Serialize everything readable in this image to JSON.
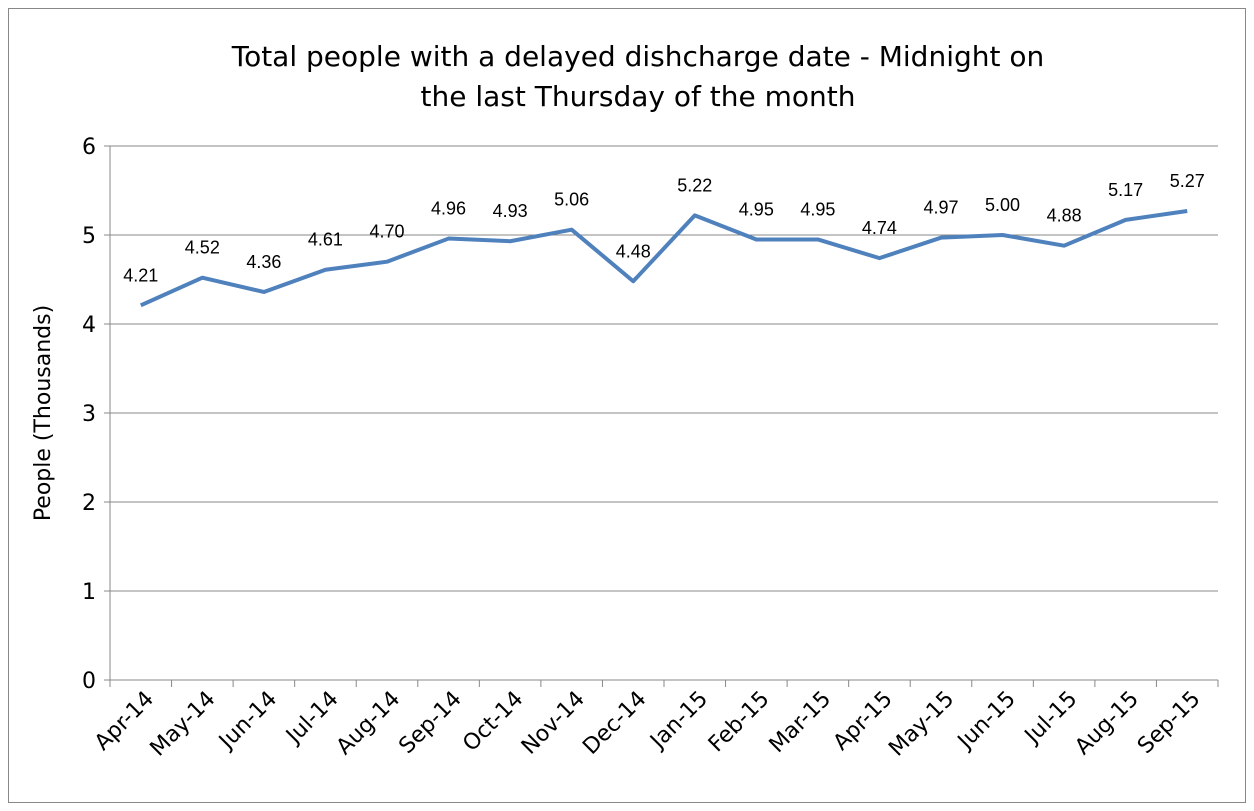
{
  "chart_data": {
    "type": "line",
    "title": [
      "Total people with a delayed dishcharge date - Midnight on",
      "the last Thursday of the month"
    ],
    "y_label": "People (Thousands)",
    "categories": [
      "Apr-14",
      "May-14",
      "Jun-14",
      "Jul-14",
      "Aug-14",
      "Sep-14",
      "Oct-14",
      "Nov-14",
      "Dec-14",
      "Jan-15",
      "Feb-15",
      "Mar-15",
      "Apr-15",
      "May-15",
      "Jun-15",
      "Jul-15",
      "Aug-15",
      "Sep-15"
    ],
    "values": [
      4.21,
      4.52,
      4.36,
      4.61,
      4.7,
      4.96,
      4.93,
      5.06,
      4.48,
      5.22,
      4.95,
      4.95,
      4.74,
      4.97,
      5.0,
      4.88,
      5.17,
      5.27
    ],
    "value_labels": [
      "4.21",
      "4.52",
      "4.36",
      "4.61",
      "4.70",
      "4.96",
      "4.93",
      "5.06",
      "4.48",
      "5.22",
      "4.95",
      "4.95",
      "4.74",
      "4.97",
      "5.00",
      "4.88",
      "5.17",
      "5.27"
    ],
    "color": "#4f81bd",
    "ylim": [
      0,
      6
    ],
    "yticks": [
      0,
      1,
      2,
      3,
      4,
      5,
      6
    ],
    "grid": true
  }
}
